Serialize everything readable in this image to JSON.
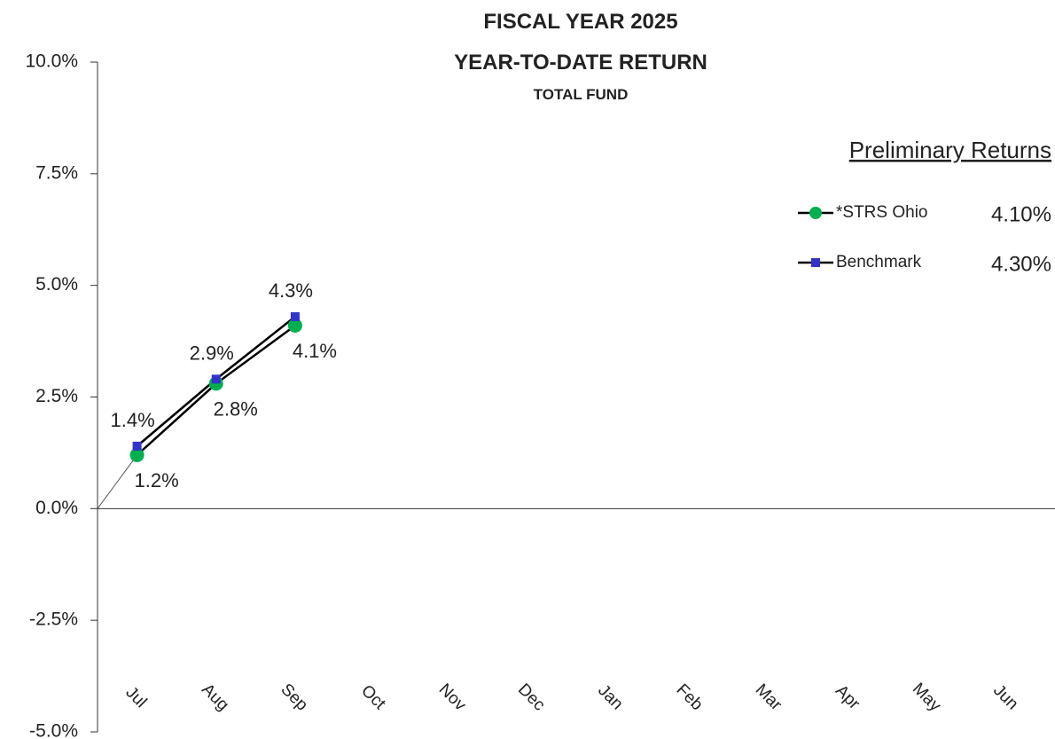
{
  "chart_data": {
    "type": "line",
    "title": "FISCAL YEAR 2025",
    "subtitle": "YEAR-TO-DATE RETURN",
    "subtitle2": "TOTAL FUND",
    "legend_title": "Preliminary Returns",
    "categories": [
      "Jul",
      "Aug",
      "Sep",
      "Oct",
      "Nov",
      "Dec",
      "Jan",
      "Feb",
      "Mar",
      "Apr",
      "May",
      "Jun"
    ],
    "series": [
      {
        "name": "*STRS Ohio",
        "color": "#00b050",
        "marker": "circle",
        "legend_value": "4.10%",
        "label_position": "below",
        "values": [
          1.2,
          2.8,
          4.1,
          null,
          null,
          null,
          null,
          null,
          null,
          null,
          null,
          null
        ],
        "value_labels": [
          "1.2%",
          "2.8%",
          "4.1%",
          null,
          null,
          null,
          null,
          null,
          null,
          null,
          null,
          null
        ]
      },
      {
        "name": "Benchmark",
        "color": "#3333cc",
        "marker": "square",
        "legend_value": "4.30%",
        "label_position": "above",
        "values": [
          1.4,
          2.9,
          4.3,
          null,
          null,
          null,
          null,
          null,
          null,
          null,
          null,
          null
        ],
        "value_labels": [
          "1.4%",
          "2.9%",
          "4.3%",
          null,
          null,
          null,
          null,
          null,
          null,
          null,
          null,
          null
        ]
      }
    ],
    "ylim": [
      -5,
      10
    ],
    "yticks": [
      {
        "value": -5,
        "label": "-5.0%"
      },
      {
        "value": -2.5,
        "label": "-2.5%"
      },
      {
        "value": 0,
        "label": "0.0%"
      },
      {
        "value": 2.5,
        "label": "2.5%"
      },
      {
        "value": 5,
        "label": "5.0%"
      },
      {
        "value": 7.5,
        "label": "7.5%"
      },
      {
        "value": 10,
        "label": "10.0%"
      }
    ],
    "grid": false
  }
}
